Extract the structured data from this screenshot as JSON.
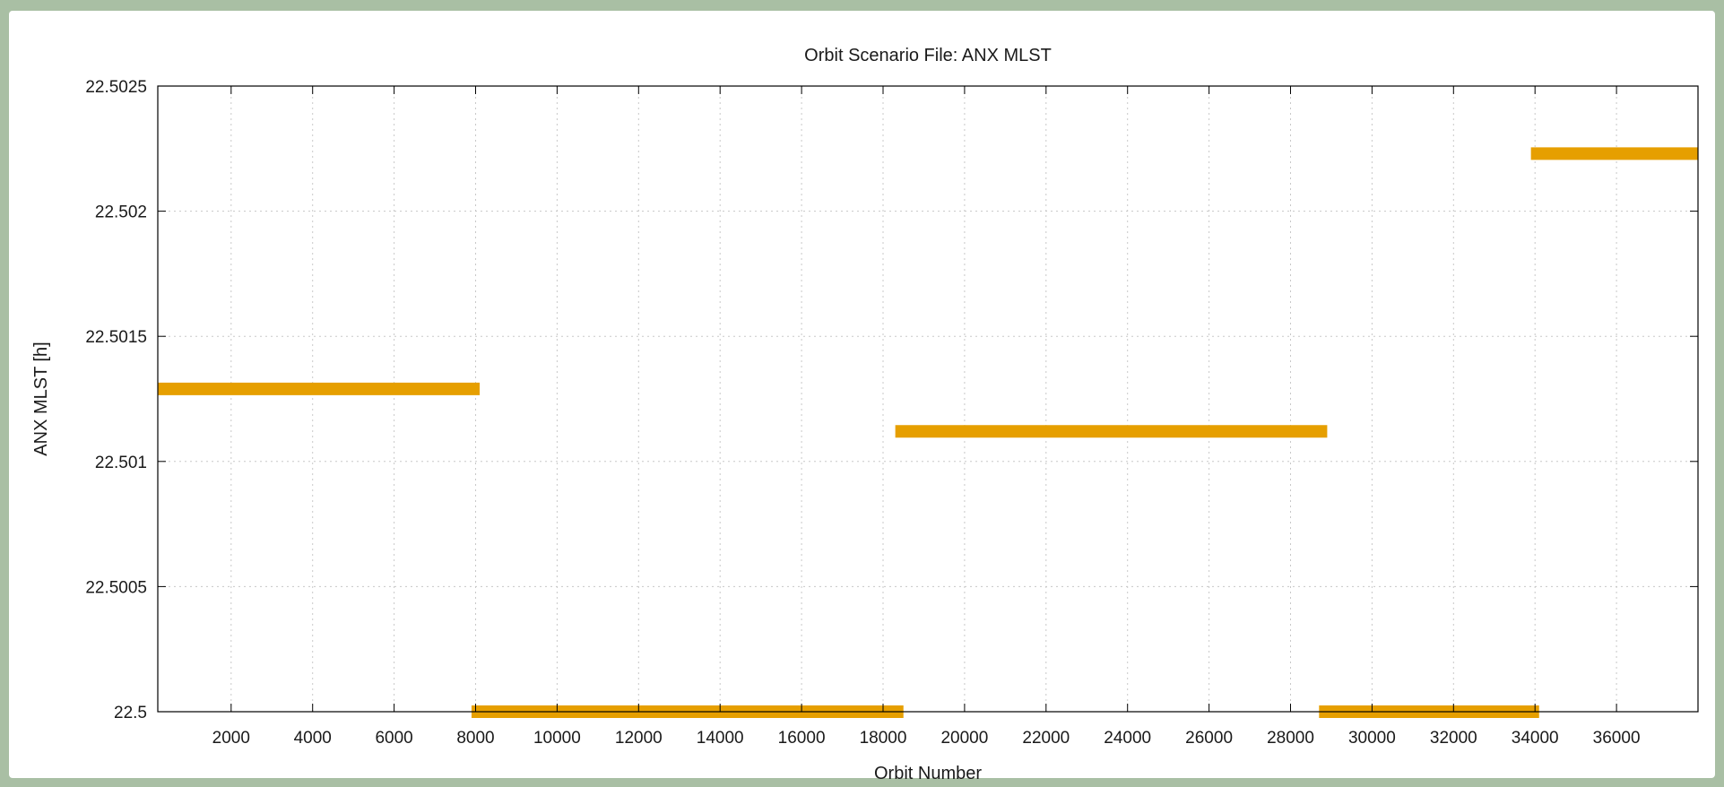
{
  "chart_data": {
    "type": "line",
    "title": "Orbit Scenario File: ANX MLST",
    "xlabel": "Orbit Number",
    "ylabel": "ANX MLST [h]",
    "xlim": [
      200,
      38000
    ],
    "ylim": [
      22.5,
      22.5025
    ],
    "x_ticks": [
      2000,
      4000,
      6000,
      8000,
      10000,
      12000,
      14000,
      16000,
      18000,
      20000,
      22000,
      24000,
      26000,
      28000,
      30000,
      32000,
      34000,
      36000
    ],
    "x_tick_labels": [
      "2000",
      "4000",
      "6000",
      "8000",
      "10000",
      "12000",
      "14000",
      "16000",
      "18000",
      "20000",
      "22000",
      "24000",
      "26000",
      "28000",
      "30000",
      "32000",
      "34000",
      "36000"
    ],
    "y_ticks": [
      22.5,
      22.5005,
      22.501,
      22.5015,
      22.502,
      22.5025
    ],
    "y_tick_labels": [
      "22.5",
      "22.5005",
      "22.501",
      "22.5015",
      "22.502",
      "22.5025"
    ],
    "grid": true,
    "series_color": "#e69f00",
    "segments": [
      {
        "x": [
          200,
          8100
        ],
        "y": [
          22.50129,
          22.50129
        ]
      },
      {
        "x": [
          7900,
          18500
        ],
        "y": [
          22.5,
          22.5
        ]
      },
      {
        "x": [
          18300,
          28900
        ],
        "y": [
          22.50112,
          22.50112
        ]
      },
      {
        "x": [
          28700,
          34100
        ],
        "y": [
          22.5,
          22.5
        ]
      },
      {
        "x": [
          33900,
          38000
        ],
        "y": [
          22.50223,
          22.50223
        ]
      }
    ]
  }
}
